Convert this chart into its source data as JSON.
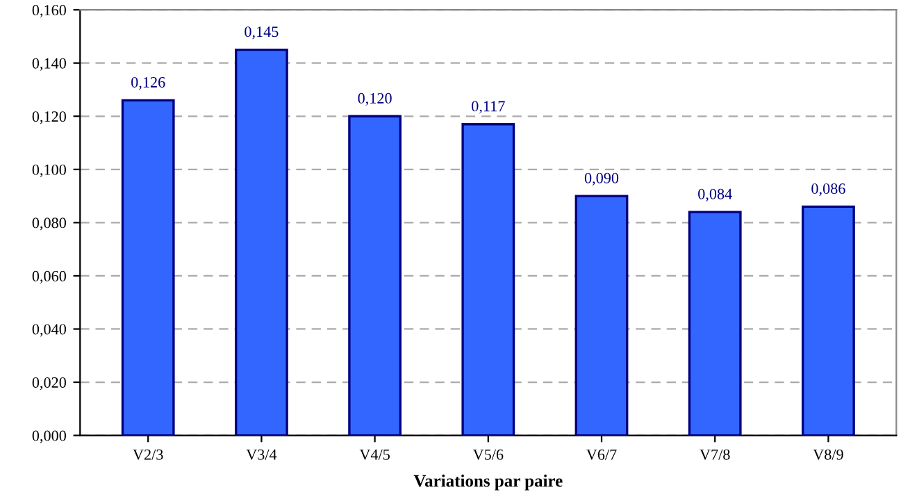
{
  "chart_data": {
    "type": "bar",
    "xlabel": "Variations par paire",
    "categories": [
      "V2/3",
      "V3/4",
      "V4/5",
      "V5/6",
      "V6/7",
      "V7/8",
      "V8/9"
    ],
    "values": [
      0.126,
      0.145,
      0.12,
      0.117,
      0.09,
      0.084,
      0.086
    ],
    "value_labels": [
      "0,126",
      "0,145",
      "0,120",
      "0,117",
      "0,090",
      "0,084",
      "0,086"
    ],
    "color": "#3366ff",
    "ylim": [
      0,
      0.16
    ],
    "yticks": [
      {
        "value": 0,
        "label": "0,000"
      },
      {
        "value": 0.02,
        "label": "0,020"
      },
      {
        "value": 0.04,
        "label": "0,040"
      },
      {
        "value": 0.06,
        "label": "0,060"
      },
      {
        "value": 0.08,
        "label": "0,080"
      },
      {
        "value": 0.1,
        "label": "0,100"
      },
      {
        "value": 0.12,
        "label": "0,120"
      },
      {
        "value": 0.14,
        "label": "0,140"
      },
      {
        "value": 0.16,
        "label": "0,160"
      }
    ],
    "grid": "y",
    "line_style": "dashed",
    "legend": false
  }
}
